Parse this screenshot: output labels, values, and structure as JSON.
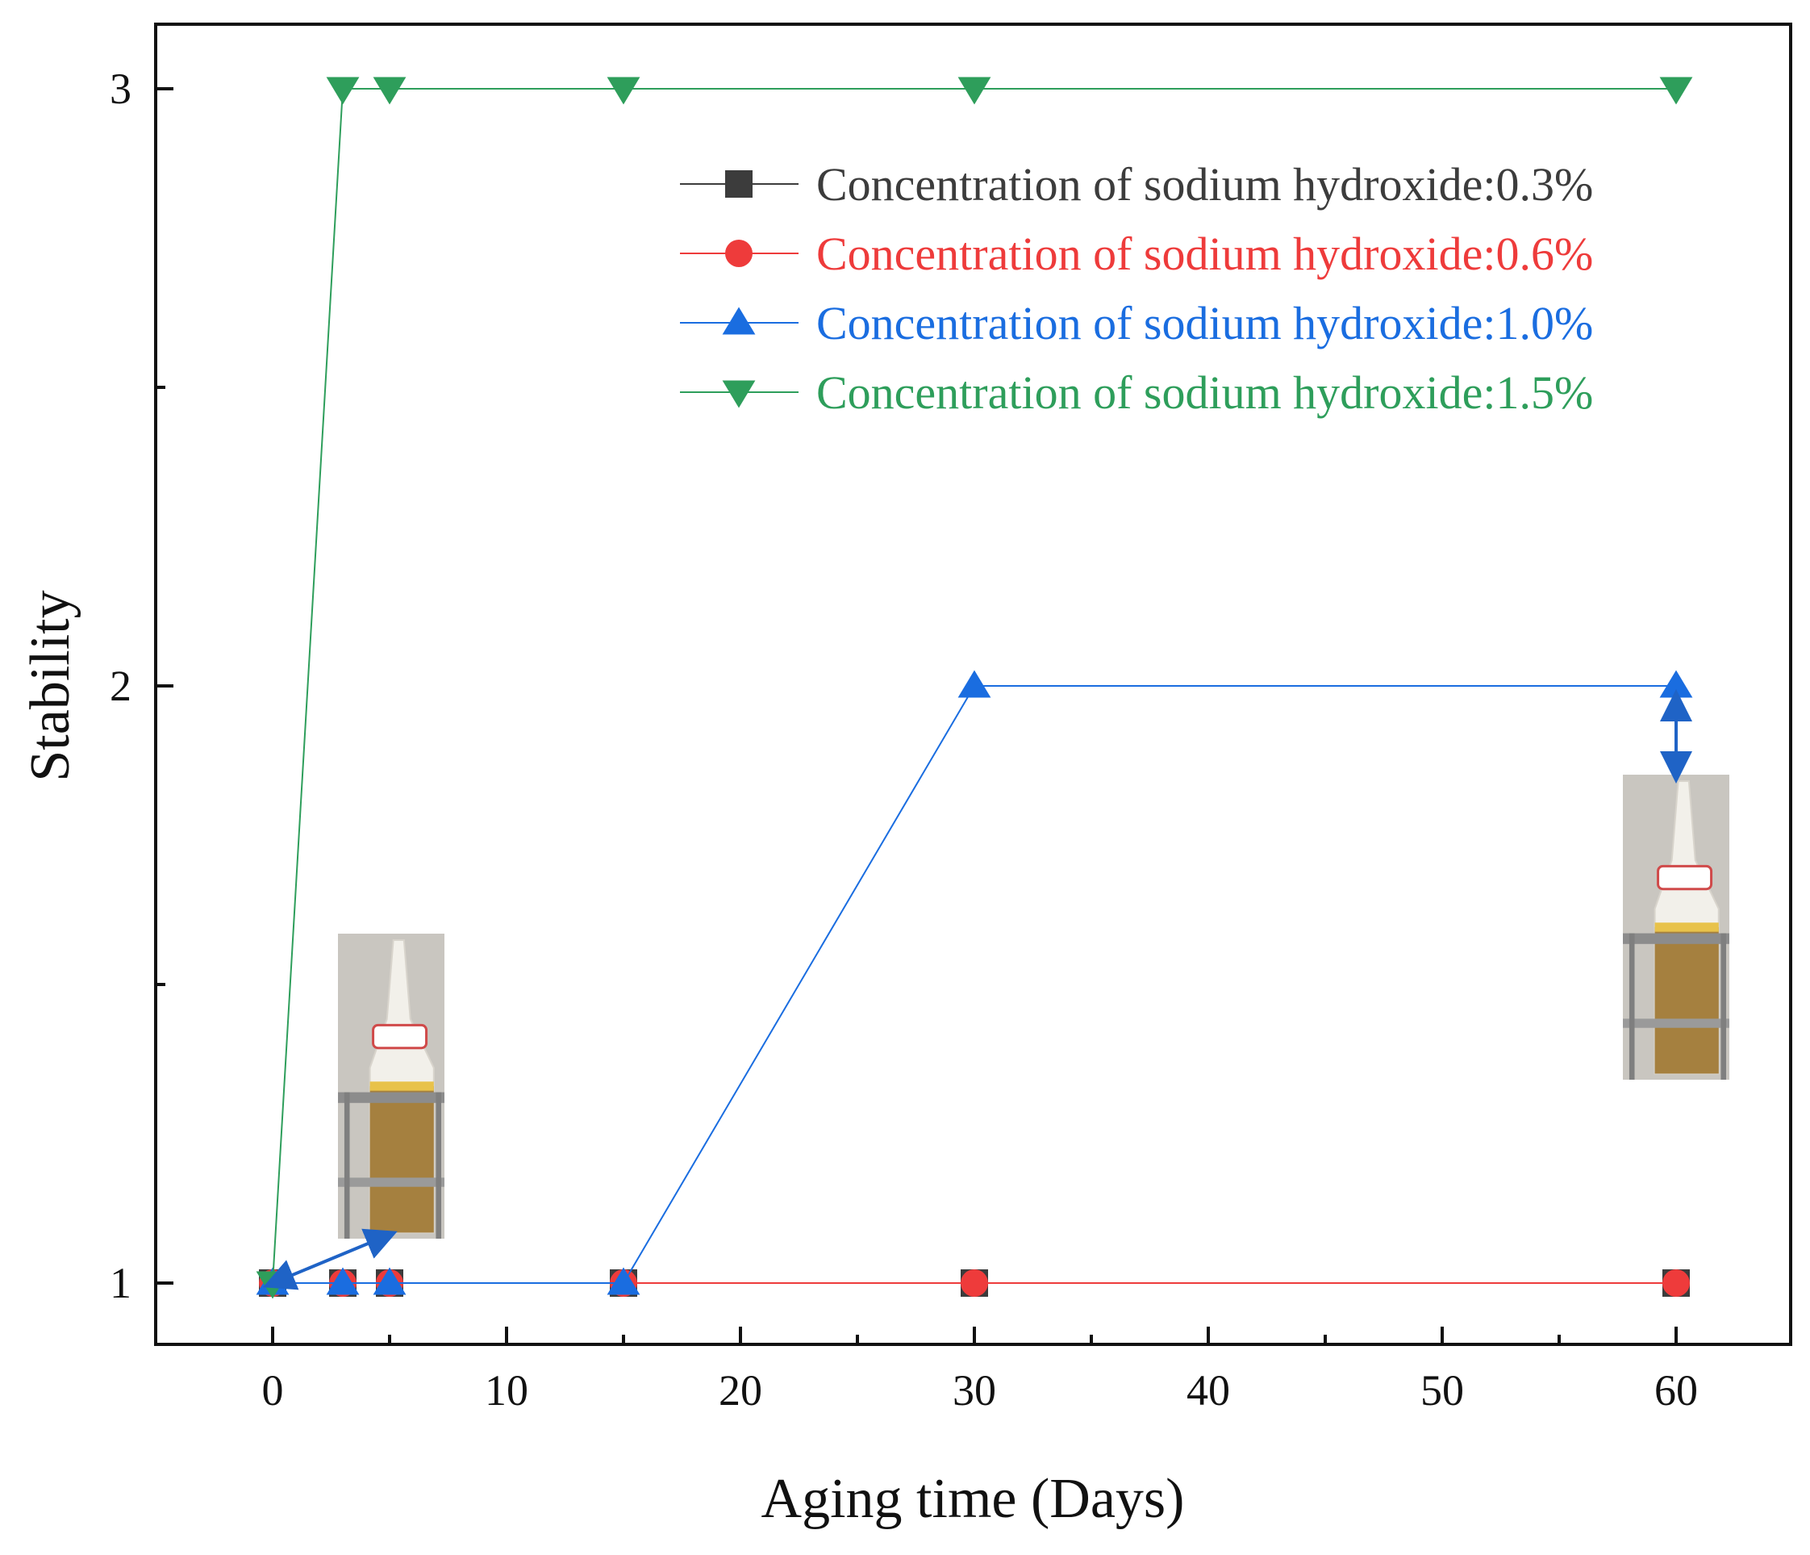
{
  "chart_data": {
    "type": "line",
    "title": "",
    "xlabel": "Aging time (Days)",
    "ylabel": "Stability",
    "xlim": [
      -5,
      65
    ],
    "ylim": [
      0.9,
      3.1
    ],
    "x_scale_note": "axis is linear 0-50, the tick labelled 60 sits at the 60 position",
    "xticks": [
      0,
      10,
      20,
      30,
      40,
      50,
      60
    ],
    "yticks": [
      1,
      2,
      3
    ],
    "legend_position": "top-right",
    "series": [
      {
        "name": "Concentration of sodium hydroxide:0.3%",
        "marker": "square",
        "color": "#3c3c3c",
        "x": [
          0,
          3,
          5,
          15,
          30,
          60
        ],
        "y": [
          1,
          1,
          1,
          1,
          1,
          1
        ]
      },
      {
        "name": "Concentration of sodium hydroxide:0.6%",
        "marker": "circle",
        "color": "#ee3b3b",
        "x": [
          0,
          3,
          5,
          15,
          30,
          60
        ],
        "y": [
          1,
          1,
          1,
          1,
          1,
          1
        ]
      },
      {
        "name": "Concentration of sodium hydroxide:1.0%",
        "marker": "triangle-up",
        "color": "#1a6de0",
        "x": [
          0,
          3,
          5,
          15,
          30,
          60
        ],
        "y": [
          1,
          1,
          1,
          1,
          2,
          2
        ]
      },
      {
        "name": "Concentration of sodium hydroxide:1.5%",
        "marker": "triangle-down",
        "color": "#2e9e5b",
        "x": [
          0,
          3,
          5,
          15,
          30,
          60
        ],
        "y": [
          1,
          3,
          3,
          3,
          3,
          3
        ]
      }
    ],
    "annotations": [
      {
        "type": "photo-inset",
        "label": "sample bottle photo (early)",
        "anchor_x": 3,
        "anchor_y": 1
      },
      {
        "type": "photo-inset",
        "label": "sample bottle photo (day 60)",
        "anchor_x": 60,
        "anchor_y": 2
      }
    ]
  }
}
